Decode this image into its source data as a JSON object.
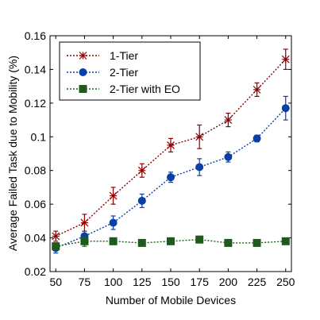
{
  "chart_data": {
    "type": "line",
    "title": "",
    "xlabel": "Number of Mobile Devices",
    "ylabel": "Average Failed Task due to Mobility (%)",
    "x": [
      50,
      75,
      100,
      125,
      150,
      175,
      200,
      225,
      250
    ],
    "xlim": [
      45,
      255
    ],
    "ylim": [
      0.02,
      0.16
    ],
    "xticks": [
      "50",
      "75",
      "100",
      "125",
      "150",
      "175",
      "200",
      "225",
      "250"
    ],
    "yticks": [
      "0.02",
      "0.04",
      "0.06",
      "0.08",
      "0.1",
      "0.12",
      "0.14",
      "0.16"
    ],
    "ytick_values": [
      0.02,
      0.04,
      0.06,
      0.08,
      0.1,
      0.12,
      0.14,
      0.16
    ],
    "grid": false,
    "legend_position": "top-left",
    "series": [
      {
        "name": "1-Tier",
        "color": "#8b0000",
        "marker": "asterisk",
        "values": [
          0.041,
          0.049,
          0.065,
          0.08,
          0.095,
          0.1,
          0.11,
          0.128,
          0.146
        ],
        "errors": [
          0.003,
          0.005,
          0.005,
          0.004,
          0.004,
          0.007,
          0.004,
          0.004,
          0.006
        ]
      },
      {
        "name": "2-Tier",
        "color": "#0a3fa6",
        "marker": "circle",
        "values": [
          0.034,
          0.041,
          0.049,
          0.062,
          0.076,
          0.082,
          0.088,
          0.099,
          0.117
        ],
        "errors": [
          0.003,
          0.003,
          0.004,
          0.004,
          0.003,
          0.005,
          0.003,
          0.002,
          0.007
        ]
      },
      {
        "name": "2-Tier with EO",
        "color": "#1e5a1e",
        "marker": "square",
        "values": [
          0.035,
          0.038,
          0.038,
          0.037,
          0.038,
          0.039,
          0.037,
          0.037,
          0.038
        ],
        "errors": [
          0.002,
          0.003,
          0.002,
          0.001,
          0.001,
          0.002,
          0.001,
          0.001,
          0.001
        ]
      }
    ]
  }
}
